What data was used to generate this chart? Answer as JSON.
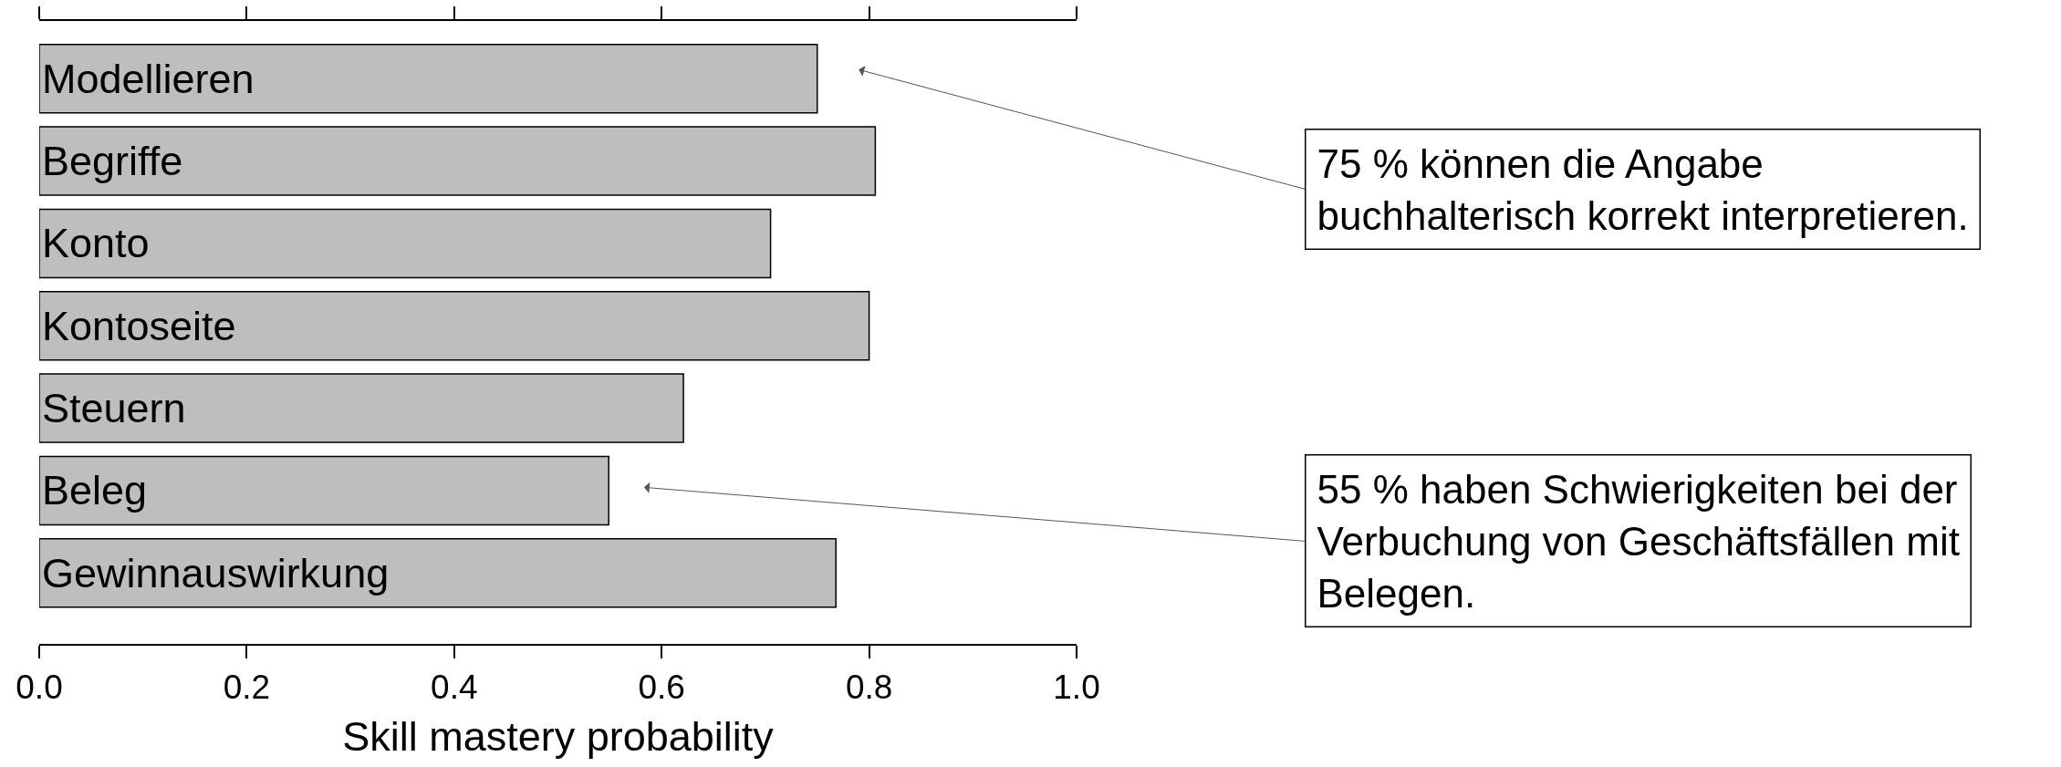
{
  "chart_data": {
    "type": "bar",
    "orientation": "horizontal",
    "xlabel": "Skill mastery probability",
    "categories": [
      "Modellieren",
      "Begriffe",
      "Konto",
      "Kontoseite",
      "Steuern",
      "Beleg",
      "Gewinnauswirkung"
    ],
    "values": [
      0.75,
      0.806,
      0.705,
      0.8,
      0.621,
      0.549,
      0.768
    ],
    "color": "#bebebe",
    "xlim": [
      0,
      1
    ],
    "xticks": [
      {
        "value": 0,
        "label": "0.0"
      },
      {
        "value": 0.2,
        "label": "0.2"
      },
      {
        "value": 0.4,
        "label": "0.4"
      },
      {
        "value": 0.6,
        "label": "0.6"
      },
      {
        "value": 0.8,
        "label": "0.8"
      },
      {
        "value": 1,
        "label": "1.0"
      }
    ],
    "tick_labels": "x",
    "grid": false,
    "annotations": [
      "75 % können die Angabe\nbuchhalterisch korrekt interpretieren.",
      "55 % haben Schwierigkeiten bei der\nVerbuchung von Geschäftsfällen mit\nBelegen."
    ]
  }
}
